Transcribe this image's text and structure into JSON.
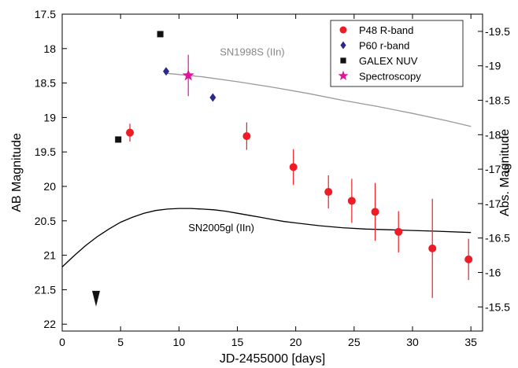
{
  "chart_data": {
    "type": "scatter",
    "xlabel": "JD-2455000 [days]",
    "ylabel": "AB Magnitude",
    "y2label": "Abs. Magnitude",
    "xlim": [
      0,
      36
    ],
    "ylim": [
      22.1,
      17.5
    ],
    "y2lim": [
      -15.15,
      -19.75
    ],
    "x_ticks": [
      0,
      5,
      10,
      15,
      20,
      25,
      30,
      35
    ],
    "x_tick_labels": [
      "0",
      "5",
      "10",
      "15",
      "20",
      "25",
      "30",
      "35"
    ],
    "y_ticks": [
      17.5,
      18,
      18.5,
      19,
      19.5,
      20,
      20.5,
      21,
      21.5,
      22
    ],
    "y_tick_labels": [
      "17.5",
      "18",
      "18.5",
      "19",
      "19.5",
      "20",
      "20.5",
      "21",
      "21.5",
      "22"
    ],
    "y2_ticks": [
      -19.5,
      -19,
      -18.5,
      -18,
      -17.5,
      -17,
      -16.5,
      -16,
      -15.5
    ],
    "y2_tick_labels": [
      "-19.5",
      "-19",
      "-18.5",
      "-18",
      "-17.5",
      "-17",
      "-16.5",
      "-16",
      "-15.5"
    ],
    "grid": false,
    "legend_position": "top-right",
    "series": [
      {
        "name": "P48 R-band",
        "marker": "circle",
        "color": "#ee1c24",
        "points": [
          {
            "x": 5.8,
            "y": 19.22,
            "err": 0.13
          },
          {
            "x": 15.8,
            "y": 19.27,
            "err": 0.2
          },
          {
            "x": 19.8,
            "y": 19.72,
            "err": 0.26
          },
          {
            "x": 22.8,
            "y": 20.08,
            "err": 0.24
          },
          {
            "x": 24.8,
            "y": 20.21,
            "err": 0.32
          },
          {
            "x": 26.8,
            "y": 20.37,
            "err": 0.42
          },
          {
            "x": 28.8,
            "y": 20.66,
            "err": 0.3
          },
          {
            "x": 31.7,
            "y": 20.9,
            "err": 0.72
          },
          {
            "x": 34.8,
            "y": 21.06,
            "err": 0.3
          }
        ]
      },
      {
        "name": "P60 r-band",
        "marker": "diamond",
        "color": "#2a2a8c",
        "points": [
          {
            "x": 8.9,
            "y": 18.33
          },
          {
            "x": 12.9,
            "y": 18.71
          }
        ]
      },
      {
        "name": "GALEX NUV",
        "marker": "square",
        "color": "#111111",
        "points": [
          {
            "x": 4.8,
            "y": 19.32
          },
          {
            "x": 8.4,
            "y": 17.79
          }
        ]
      },
      {
        "name": "Spectroscopy",
        "marker": "star",
        "color": "#e0149c",
        "points": [
          {
            "x": 10.8,
            "y": 18.39,
            "err": 0.3
          }
        ]
      }
    ],
    "upper_limit": {
      "x": 2.9,
      "y": 21.63,
      "marker": "triangle-down",
      "color": "#111111"
    },
    "curves": [
      {
        "label": "SN1998S (IIn)",
        "color": "#999999",
        "label_x": 13.5,
        "label_y": 18.1,
        "x": [
          9,
          12,
          15,
          18,
          21,
          24,
          27,
          30,
          33,
          35
        ],
        "y": [
          18.36,
          18.41,
          18.48,
          18.56,
          18.65,
          18.75,
          18.84,
          18.94,
          19.05,
          19.13
        ]
      },
      {
        "label": "SN2005gl (IIn)",
        "color": "#000000",
        "label_x": 10.8,
        "label_y": 20.65,
        "x": [
          0,
          1,
          2,
          3,
          4,
          5,
          6,
          7,
          8,
          9,
          10,
          11,
          12,
          13,
          14,
          15,
          16,
          17,
          18,
          19,
          20,
          22,
          24,
          26,
          28,
          30,
          32,
          35
        ],
        "y": [
          21.17,
          21.01,
          20.86,
          20.73,
          20.62,
          20.52,
          20.45,
          20.39,
          20.35,
          20.33,
          20.32,
          20.32,
          20.33,
          20.34,
          20.36,
          20.39,
          20.42,
          20.45,
          20.48,
          20.51,
          20.53,
          20.57,
          20.6,
          20.62,
          20.63,
          20.64,
          20.65,
          20.67
        ]
      }
    ]
  }
}
